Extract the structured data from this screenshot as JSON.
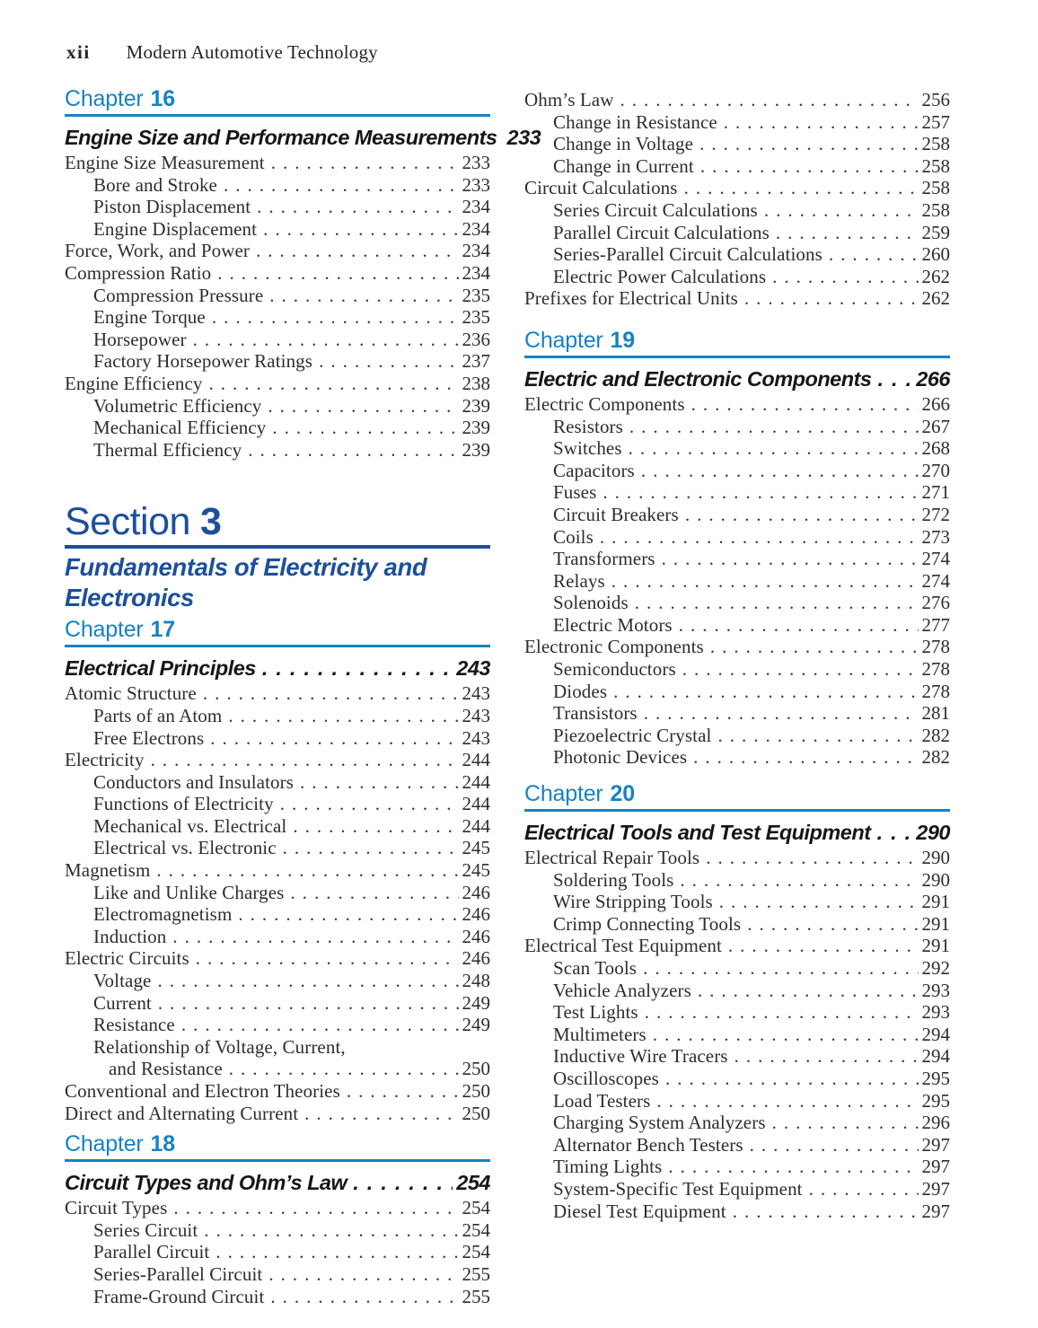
{
  "page": {
    "folio": "xii",
    "running_title": "Modern Automotive Technology"
  },
  "colors": {
    "chapter_blue": "#1583c5",
    "section_blue": "#1d4f9c",
    "body_text": "#2f2d2b"
  },
  "leader_dot": ".",
  "left_column": {
    "blocks": [
      {
        "type": "chapter",
        "label": "Chapter",
        "number": "16",
        "title": "Engine Size and Performance Measurements",
        "page": "233",
        "entries": [
          {
            "t": "Engine Size Measurement",
            "p": "233",
            "lvl": 1
          },
          {
            "t": "Bore and Stroke",
            "p": "233",
            "lvl": 2
          },
          {
            "t": "Piston Displacement",
            "p": "234",
            "lvl": 2
          },
          {
            "t": "Engine Displacement",
            "p": "234",
            "lvl": 2
          },
          {
            "t": "Force, Work, and Power",
            "p": "234",
            "lvl": 1
          },
          {
            "t": "Compression Ratio",
            "p": "234",
            "lvl": 1
          },
          {
            "t": "Compression Pressure",
            "p": "235",
            "lvl": 2
          },
          {
            "t": "Engine Torque",
            "p": "235",
            "lvl": 2
          },
          {
            "t": "Horsepower",
            "p": "236",
            "lvl": 2
          },
          {
            "t": "Factory Horsepower Ratings",
            "p": "237",
            "lvl": 2
          },
          {
            "t": "Engine Efficiency",
            "p": "238",
            "lvl": 1
          },
          {
            "t": "Volumetric Efficiency",
            "p": "239",
            "lvl": 2
          },
          {
            "t": "Mechanical Efficiency",
            "p": "239",
            "lvl": 2
          },
          {
            "t": "Thermal Efficiency",
            "p": "239",
            "lvl": 2
          }
        ]
      },
      {
        "type": "section",
        "label": "Section",
        "number": "3",
        "title": "Fundamentals of Electricity and Electronics"
      },
      {
        "type": "chapter",
        "label": "Chapter",
        "number": "17",
        "title": "Electrical Principles",
        "page": "243",
        "entries": [
          {
            "t": "Atomic Structure",
            "p": "243",
            "lvl": 1
          },
          {
            "t": "Parts of an Atom",
            "p": "243",
            "lvl": 2
          },
          {
            "t": "Free Electrons",
            "p": "243",
            "lvl": 2
          },
          {
            "t": "Electricity",
            "p": "244",
            "lvl": 1
          },
          {
            "t": "Conductors and Insulators",
            "p": "244",
            "lvl": 2
          },
          {
            "t": "Functions of Electricity",
            "p": "244",
            "lvl": 2
          },
          {
            "t": "Mechanical vs. Electrical",
            "p": "244",
            "lvl": 2
          },
          {
            "t": "Electrical vs. Electronic",
            "p": "245",
            "lvl": 2
          },
          {
            "t": "Magnetism",
            "p": "245",
            "lvl": 1
          },
          {
            "t": "Like and Unlike Charges",
            "p": "246",
            "lvl": 2
          },
          {
            "t": "Electromagnetism",
            "p": "246",
            "lvl": 2
          },
          {
            "t": "Induction",
            "p": "246",
            "lvl": 2
          },
          {
            "t": "Electric Circuits",
            "p": "246",
            "lvl": 1
          },
          {
            "t": "Voltage",
            "p": "248",
            "lvl": 2
          },
          {
            "t": "Current",
            "p": "249",
            "lvl": 2
          },
          {
            "t": "Resistance",
            "p": "249",
            "lvl": 2
          },
          {
            "t": "Relationship of Voltage, Current,",
            "p": "",
            "lvl": 2
          },
          {
            "t": "and Resistance",
            "p": "250",
            "lvl": 3
          },
          {
            "t": "Conventional and Electron Theories",
            "p": "250",
            "lvl": 1
          },
          {
            "t": "Direct and Alternating Current",
            "p": "250",
            "lvl": 1
          }
        ]
      },
      {
        "type": "chapter",
        "label": "Chapter",
        "number": "18",
        "title": "Circuit Types and Ohm’s Law",
        "page": "254",
        "entries": [
          {
            "t": "Circuit Types",
            "p": "254",
            "lvl": 1
          },
          {
            "t": "Series Circuit",
            "p": "254",
            "lvl": 2
          },
          {
            "t": "Parallel Circuit",
            "p": "254",
            "lvl": 2
          },
          {
            "t": "Series-Parallel Circuit",
            "p": "255",
            "lvl": 2
          },
          {
            "t": "Frame-Ground Circuit",
            "p": "255",
            "lvl": 2
          }
        ]
      }
    ]
  },
  "right_column": {
    "blocks": [
      {
        "type": "entries",
        "entries": [
          {
            "t": "Ohm’s Law",
            "p": "256",
            "lvl": 1
          },
          {
            "t": "Change in Resistance",
            "p": "257",
            "lvl": 2
          },
          {
            "t": "Change in Voltage",
            "p": "258",
            "lvl": 2
          },
          {
            "t": "Change in Current",
            "p": "258",
            "lvl": 2
          },
          {
            "t": "Circuit Calculations",
            "p": "258",
            "lvl": 1
          },
          {
            "t": "Series Circuit Calculations",
            "p": "258",
            "lvl": 2
          },
          {
            "t": "Parallel Circuit Calculations",
            "p": "259",
            "lvl": 2
          },
          {
            "t": "Series-Parallel Circuit Calculations",
            "p": "260",
            "lvl": 2
          },
          {
            "t": "Electric Power Calculations",
            "p": "262",
            "lvl": 2
          },
          {
            "t": "Prefixes for Electrical Units",
            "p": "262",
            "lvl": 1
          }
        ]
      },
      {
        "type": "chapter",
        "label": "Chapter",
        "number": "19",
        "title": "Electric and Electronic Components",
        "page": "266",
        "entries": [
          {
            "t": "Electric Components",
            "p": "266",
            "lvl": 1
          },
          {
            "t": "Resistors",
            "p": "267",
            "lvl": 2
          },
          {
            "t": "Switches",
            "p": "268",
            "lvl": 2
          },
          {
            "t": "Capacitors",
            "p": "270",
            "lvl": 2
          },
          {
            "t": "Fuses",
            "p": "271",
            "lvl": 2
          },
          {
            "t": "Circuit Breakers",
            "p": "272",
            "lvl": 2
          },
          {
            "t": "Coils",
            "p": "273",
            "lvl": 2
          },
          {
            "t": "Transformers",
            "p": "274",
            "lvl": 2
          },
          {
            "t": "Relays",
            "p": "274",
            "lvl": 2
          },
          {
            "t": "Solenoids",
            "p": "276",
            "lvl": 2
          },
          {
            "t": "Electric Motors",
            "p": "277",
            "lvl": 2
          },
          {
            "t": "Electronic Components",
            "p": "278",
            "lvl": 1
          },
          {
            "t": "Semiconductors",
            "p": "278",
            "lvl": 2
          },
          {
            "t": "Diodes",
            "p": "278",
            "lvl": 2
          },
          {
            "t": "Transistors",
            "p": "281",
            "lvl": 2
          },
          {
            "t": "Piezoelectric Crystal",
            "p": "282",
            "lvl": 2
          },
          {
            "t": "Photonic Devices",
            "p": "282",
            "lvl": 2
          }
        ]
      },
      {
        "type": "chapter",
        "label": "Chapter",
        "number": "20",
        "title": "Electrical Tools and Test Equipment",
        "page": "290",
        "entries": [
          {
            "t": "Electrical Repair Tools",
            "p": "290",
            "lvl": 1
          },
          {
            "t": "Soldering Tools",
            "p": "290",
            "lvl": 2
          },
          {
            "t": "Wire Stripping Tools",
            "p": "291",
            "lvl": 2
          },
          {
            "t": "Crimp Connecting Tools",
            "p": "291",
            "lvl": 2
          },
          {
            "t": "Electrical Test Equipment",
            "p": "291",
            "lvl": 1
          },
          {
            "t": "Scan Tools",
            "p": "292",
            "lvl": 2
          },
          {
            "t": "Vehicle Analyzers",
            "p": "293",
            "lvl": 2
          },
          {
            "t": "Test Lights",
            "p": "293",
            "lvl": 2
          },
          {
            "t": "Multimeters",
            "p": "294",
            "lvl": 2
          },
          {
            "t": "Inductive Wire Tracers",
            "p": "294",
            "lvl": 2
          },
          {
            "t": "Oscilloscopes",
            "p": "295",
            "lvl": 2
          },
          {
            "t": "Load Testers",
            "p": "295",
            "lvl": 2
          },
          {
            "t": "Charging System Analyzers",
            "p": "296",
            "lvl": 2
          },
          {
            "t": "Alternator Bench Testers",
            "p": "297",
            "lvl": 2
          },
          {
            "t": "Timing Lights",
            "p": "297",
            "lvl": 2
          },
          {
            "t": "System-Specific Test Equipment",
            "p": "297",
            "lvl": 2
          },
          {
            "t": "Diesel Test Equipment",
            "p": "297",
            "lvl": 2
          }
        ]
      }
    ]
  }
}
